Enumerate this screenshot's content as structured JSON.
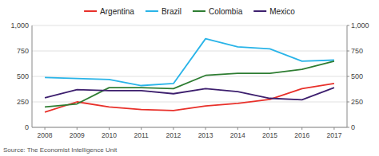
{
  "chart_data": {
    "type": "line",
    "x": [
      2008,
      2009,
      2010,
      2011,
      2012,
      2013,
      2014,
      2015,
      2016,
      2017
    ],
    "series": [
      {
        "name": "Argentina",
        "color": "#e8302a",
        "values": [
          150,
          250,
          200,
          175,
          165,
          210,
          235,
          275,
          380,
          430
        ]
      },
      {
        "name": "Brazil",
        "color": "#29b4e8",
        "values": [
          490,
          480,
          470,
          410,
          430,
          870,
          790,
          770,
          650,
          660
        ]
      },
      {
        "name": "Colombia",
        "color": "#2e7d32",
        "values": [
          200,
          230,
          390,
          390,
          380,
          510,
          530,
          530,
          570,
          650
        ]
      },
      {
        "name": "Mexico",
        "color": "#3d1f6e",
        "values": [
          290,
          370,
          360,
          360,
          330,
          380,
          350,
          285,
          270,
          390
        ]
      }
    ],
    "xlim": [
      2007.6,
      2017.4
    ],
    "xticks": [
      2008,
      2009,
      2010,
      2011,
      2012,
      2013,
      2014,
      2015,
      2016,
      2017
    ],
    "ylim": [
      0,
      1000
    ],
    "yticks": [
      0,
      250,
      500,
      750,
      {
        "value": 1000,
        "label": "1,000"
      }
    ],
    "y2lim": [
      0,
      1000
    ],
    "y2ticks": [
      0,
      250,
      500,
      750,
      {
        "value": 1000,
        "label": "1,000"
      }
    ],
    "grid": true,
    "legend": "top",
    "source": "Source: The Economist Intelligence Unit"
  }
}
